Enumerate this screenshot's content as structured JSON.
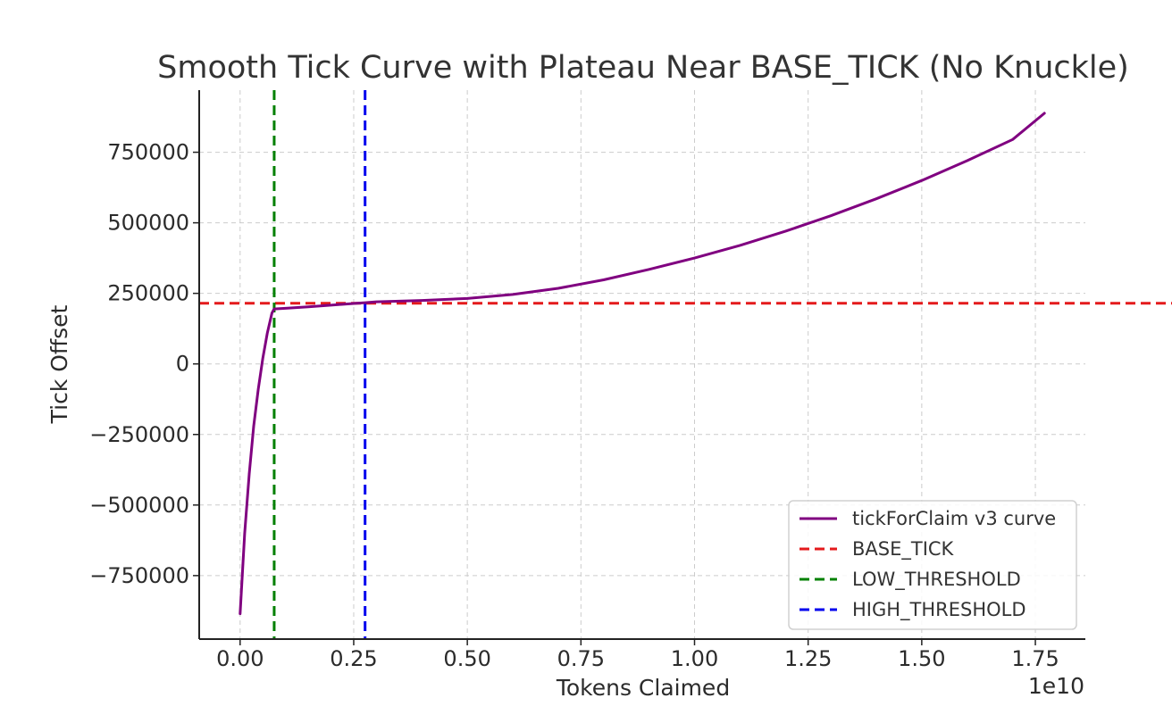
{
  "chart_data": {
    "type": "line",
    "title": "Smooth Tick Curve with Plateau Near BASE_TICK (No Knuckle)",
    "xlabel": "Tokens Claimed",
    "ylabel": "Tick Offset",
    "x_offset_text": "1e10",
    "xlim": [
      -0.09,
      1.86
    ],
    "ylim": [
      -975000,
      970000
    ],
    "x_ticks": [
      0.0,
      0.25,
      0.5,
      0.75,
      1.0,
      1.25,
      1.5,
      1.75
    ],
    "x_tick_labels": [
      "0.00",
      "0.25",
      "0.50",
      "0.75",
      "1.00",
      "1.25",
      "1.50",
      "1.75"
    ],
    "y_ticks": [
      -750000,
      -500000,
      -250000,
      0,
      250000,
      500000,
      750000
    ],
    "y_tick_labels": [
      "−750000",
      "−500000",
      "−250000",
      "0",
      "250000",
      "500000",
      "750000"
    ],
    "grid": true,
    "legend_position": "lower-right",
    "series": [
      {
        "name": "tickForClaim v3 curve",
        "color": "#800080",
        "style": "solid",
        "x": [
          0.0,
          0.01,
          0.02,
          0.03,
          0.04,
          0.05,
          0.06,
          0.07,
          0.075,
          0.1,
          0.15,
          0.2,
          0.25,
          0.275,
          0.3,
          0.4,
          0.5,
          0.6,
          0.7,
          0.8,
          0.9,
          1.0,
          1.1,
          1.2,
          1.3,
          1.4,
          1.5,
          1.6,
          1.7,
          1.77
        ],
        "y": [
          -885000,
          -600000,
          -390000,
          -220000,
          -90000,
          20000,
          110000,
          180000,
          195000,
          197000,
          202000,
          208000,
          214000,
          217000,
          220000,
          225000,
          232000,
          246000,
          268000,
          298000,
          335000,
          375000,
          420000,
          470000,
          525000,
          585000,
          650000,
          720000,
          795000,
          888000
        ]
      },
      {
        "name": "BASE_TICK",
        "color": "#e41a1c",
        "style": "dashed",
        "orientation": "horizontal",
        "value": 215000
      },
      {
        "name": "LOW_THRESHOLD",
        "color": "#008000",
        "style": "dashed",
        "orientation": "vertical",
        "value": 0.075
      },
      {
        "name": "HIGH_THRESHOLD",
        "color": "#0000ee",
        "style": "dashed",
        "orientation": "vertical",
        "value": 0.275
      }
    ]
  }
}
